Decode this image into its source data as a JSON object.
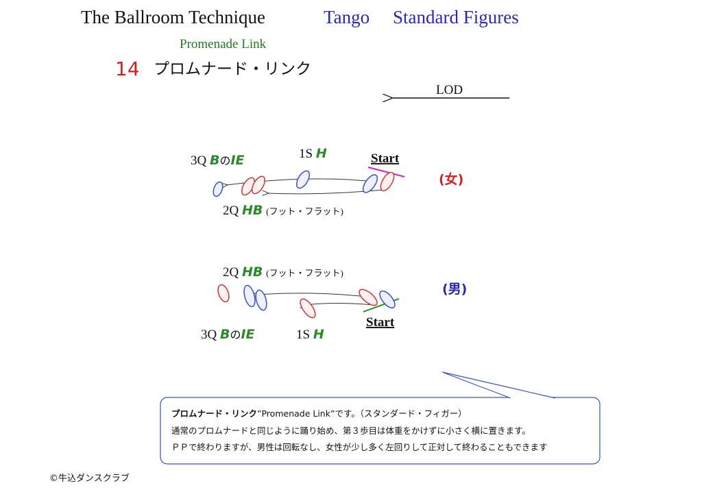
{
  "header": {
    "title": "The Ballroom Technique",
    "dance": "Tango",
    "category": "Standard Figures"
  },
  "figure": {
    "name_en": "Promenade Link",
    "number": "14",
    "name_ja": "プロムナード・リンク"
  },
  "lod": "LOD",
  "woman": {
    "label": "(女)",
    "start": "Start",
    "steps": [
      {
        "count": "3Q",
        "footwork": "B",
        "joiner": "の",
        "position": "IE"
      },
      {
        "count": "1S",
        "footwork": "H"
      },
      {
        "count": "2Q",
        "footwork": "HB",
        "note": "(フット・フラット)"
      }
    ]
  },
  "man": {
    "label": "(男)",
    "start": "Start",
    "steps": [
      {
        "count": "2Q",
        "footwork": "HB",
        "note": "(フット・フラット)"
      },
      {
        "count": "3Q",
        "footwork": "B",
        "joiner": "の",
        "position": "IE"
      },
      {
        "count": "1S",
        "footwork": "H"
      }
    ]
  },
  "callout": {
    "lines": [
      {
        "bold": "プロムナード・リンク",
        "text": "”Promenade Link”です。（スタンダード・フィガー）"
      },
      {
        "text": "通常のプロムナードと同じように踊り始め、第３歩目は体重をかけずに小さく横に置きます。"
      },
      {
        "text": "ＰＰで終わりますが、男性は回転なし、女性が少し多く左回りして正対して終わることもできます"
      }
    ]
  },
  "copyright": "©牛込ダンスクラブ"
}
